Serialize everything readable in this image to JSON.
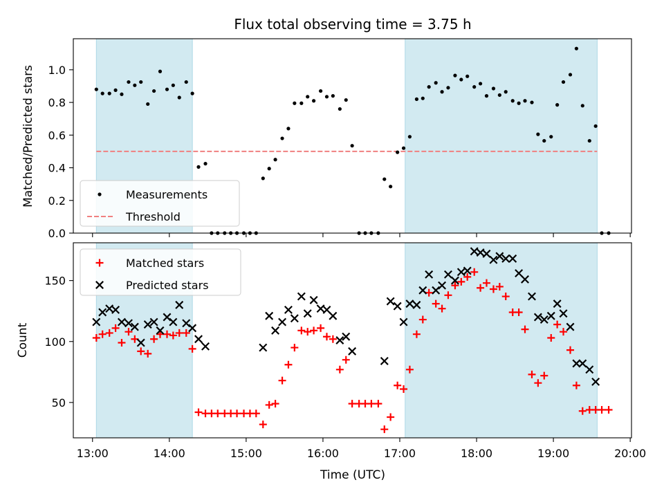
{
  "figure": {
    "title": "Flux total observing time = 3.75 h"
  },
  "colors": {
    "shade": "#add8e6",
    "measurement": "#000000",
    "threshold": "#f08080",
    "matched": "#ff0000",
    "predicted": "#000000"
  },
  "chart_data": [
    {
      "type": "scatter",
      "ylabel": "Matched/Predicted stars",
      "ylim": [
        0,
        1.19
      ],
      "xlim": [
        12.75,
        20.0167
      ],
      "yticks": [
        0.0,
        0.2,
        0.4,
        0.6,
        0.8,
        1.0
      ],
      "ytick_labels": [
        "0.0",
        "0.2",
        "0.4",
        "0.6",
        "0.8",
        "1.0"
      ],
      "shaded_spans": [
        [
          13.05,
          14.3
        ],
        [
          17.07,
          19.57
        ]
      ],
      "legend_location": "lower-left",
      "legend": [
        {
          "label": "Measurements",
          "kind": "dot"
        },
        {
          "label": "Threshold",
          "kind": "dash"
        }
      ],
      "threshold": {
        "name": "Threshold",
        "y": 0.5,
        "x_range": [
          13.05,
          19.57
        ]
      },
      "series": [
        {
          "name": "Measurements",
          "marker": "dot",
          "x": [
            13.05,
            13.13,
            13.22,
            13.3,
            13.38,
            13.47,
            13.55,
            13.63,
            13.72,
            13.8,
            13.88,
            13.97,
            14.05,
            14.13,
            14.22,
            14.3,
            14.38,
            14.47,
            14.55,
            14.63,
            14.72,
            14.8,
            14.88,
            14.97,
            15.05,
            15.13,
            15.22,
            15.3,
            15.38,
            15.47,
            15.55,
            15.63,
            15.72,
            15.8,
            15.88,
            15.97,
            16.05,
            16.13,
            16.22,
            16.3,
            16.38,
            16.47,
            16.55,
            16.63,
            16.72,
            16.8,
            16.88,
            16.97,
            17.05,
            17.13,
            17.22,
            17.3,
            17.38,
            17.47,
            17.55,
            17.63,
            17.72,
            17.8,
            17.88,
            17.97,
            18.05,
            18.13,
            18.22,
            18.3,
            18.38,
            18.47,
            18.55,
            18.63,
            18.72,
            18.8,
            18.88,
            18.97,
            19.05,
            19.13,
            19.22,
            19.3,
            19.38,
            19.47,
            19.55,
            19.63,
            19.72
          ],
          "y": [
            0.88,
            0.855,
            0.855,
            0.875,
            0.85,
            0.925,
            0.905,
            0.925,
            0.79,
            0.87,
            0.99,
            0.88,
            0.905,
            0.83,
            0.925,
            0.855,
            0.405,
            0.425,
            0,
            0,
            0,
            0,
            0,
            0,
            0,
            0,
            0.335,
            0.395,
            0.45,
            0.58,
            0.64,
            0.795,
            0.795,
            0.835,
            0.81,
            0.87,
            0.835,
            0.84,
            0.76,
            0.815,
            0.535,
            0,
            0,
            0,
            0,
            0.33,
            0.285,
            0.495,
            0.52,
            0.59,
            0.82,
            0.825,
            0.895,
            0.92,
            0.865,
            0.89,
            0.965,
            0.94,
            0.96,
            0.895,
            0.915,
            0.84,
            0.885,
            0.845,
            0.865,
            0.81,
            0.795,
            0.81,
            0.8,
            0.605,
            0.565,
            0.59,
            0.785,
            0.925,
            0.97,
            1.13,
            0.78,
            0.565,
            0.655,
            0,
            0
          ]
        }
      ]
    },
    {
      "type": "scatter",
      "xlabel": "Time (UTC)",
      "ylabel": "Count",
      "ylim": [
        21,
        181
      ],
      "xlim": [
        12.75,
        20.0167
      ],
      "yticks": [
        50,
        100,
        150
      ],
      "ytick_labels": [
        "50",
        "100",
        "150"
      ],
      "xticks": [
        13,
        14,
        15,
        16,
        17,
        18,
        19,
        20
      ],
      "xtick_labels": [
        "13:00",
        "14:00",
        "15:00",
        "16:00",
        "17:00",
        "18:00",
        "19:00",
        "20:00"
      ],
      "shaded_spans": [
        [
          13.05,
          14.3
        ],
        [
          17.07,
          19.57
        ]
      ],
      "legend_location": "top-left",
      "legend": [
        {
          "label": "Matched stars",
          "kind": "plus"
        },
        {
          "label": "Predicted stars",
          "kind": "cross"
        }
      ],
      "series": [
        {
          "name": "Matched stars",
          "marker": "plus",
          "x": [
            13.05,
            13.13,
            13.22,
            13.3,
            13.38,
            13.47,
            13.55,
            13.63,
            13.72,
            13.8,
            13.88,
            13.97,
            14.05,
            14.13,
            14.22,
            14.3,
            14.38,
            14.47,
            14.55,
            14.63,
            14.72,
            14.8,
            14.88,
            14.97,
            15.05,
            15.13,
            15.22,
            15.3,
            15.38,
            15.47,
            15.55,
            15.63,
            15.72,
            15.8,
            15.88,
            15.97,
            16.05,
            16.13,
            16.22,
            16.3,
            16.38,
            16.47,
            16.55,
            16.63,
            16.72,
            16.8,
            16.88,
            16.97,
            17.05,
            17.13,
            17.22,
            17.3,
            17.38,
            17.47,
            17.55,
            17.63,
            17.72,
            17.8,
            17.88,
            17.97,
            18.05,
            18.13,
            18.22,
            18.3,
            18.38,
            18.47,
            18.55,
            18.63,
            18.72,
            18.8,
            18.88,
            18.97,
            19.05,
            19.13,
            19.22,
            19.3,
            19.38,
            19.47,
            19.55,
            19.63,
            19.72
          ],
          "y": [
            103,
            106,
            107,
            111,
            99,
            108,
            102,
            92,
            90,
            102,
            106,
            106,
            105,
            107,
            107,
            94,
            42,
            41,
            41,
            41,
            41,
            41,
            41,
            41,
            41,
            41,
            32,
            48,
            49,
            68,
            81,
            95,
            109,
            108,
            109,
            111,
            104,
            102,
            77,
            85,
            49,
            49,
            49,
            49,
            49,
            28,
            38,
            64,
            61,
            77,
            106,
            118,
            140,
            131,
            127,
            138,
            146,
            149,
            153,
            157,
            144,
            148,
            143,
            145,
            137,
            124,
            124,
            110,
            73,
            66,
            72,
            103,
            114,
            108,
            93,
            64,
            43,
            44,
            44,
            44,
            44
          ]
        },
        {
          "name": "Predicted stars",
          "marker": "cross",
          "x": [
            13.05,
            13.13,
            13.22,
            13.3,
            13.38,
            13.47,
            13.55,
            13.63,
            13.72,
            13.8,
            13.88,
            13.97,
            14.05,
            14.13,
            14.22,
            14.3,
            14.38,
            14.47,
            15.22,
            15.3,
            15.38,
            15.47,
            15.55,
            15.63,
            15.72,
            15.8,
            15.88,
            15.97,
            16.05,
            16.13,
            16.22,
            16.3,
            16.38,
            16.8,
            16.88,
            16.97,
            17.05,
            17.13,
            17.22,
            17.3,
            17.38,
            17.47,
            17.55,
            17.63,
            17.72,
            17.8,
            17.88,
            17.97,
            18.05,
            18.13,
            18.22,
            18.3,
            18.38,
            18.47,
            18.55,
            18.63,
            18.72,
            18.8,
            18.88,
            18.97,
            19.05,
            19.13,
            19.22,
            19.3,
            19.38,
            19.47,
            19.55
          ],
          "y": [
            116,
            124,
            127,
            126,
            116,
            115,
            112,
            99,
            114,
            116,
            109,
            120,
            116,
            130,
            115,
            111,
            102,
            96,
            95,
            121,
            109,
            116,
            126,
            119,
            137,
            123,
            134,
            127,
            126,
            121,
            101,
            104,
            92,
            84,
            133,
            129,
            116,
            131,
            130,
            142,
            155,
            142,
            146,
            155,
            150,
            157,
            158,
            174,
            173,
            172,
            167,
            170,
            168,
            168,
            156,
            151,
            137,
            120,
            118,
            121,
            131,
            123,
            112,
            82,
            82,
            77,
            67
          ]
        }
      ]
    }
  ]
}
